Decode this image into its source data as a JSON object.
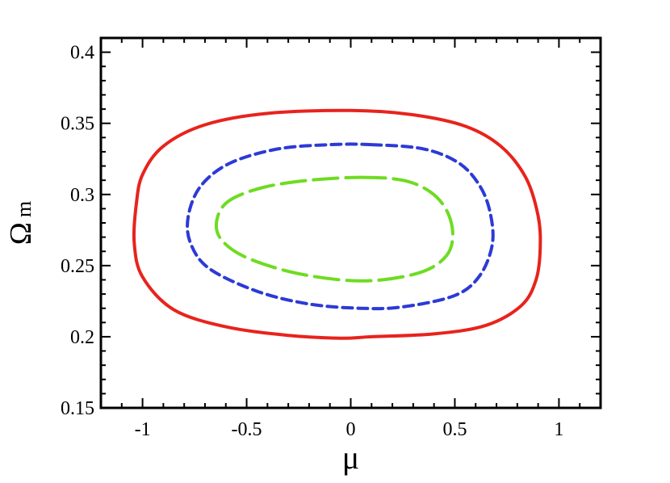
{
  "chart_data": {
    "type": "line",
    "title": "",
    "xlabel": "μ",
    "ylabel": "Ω",
    "ylabel_subscript": "m",
    "xlim": [
      -1.2,
      1.2
    ],
    "ylim": [
      0.15,
      0.41
    ],
    "x_ticks": [
      -1,
      -0.5,
      0,
      0.5,
      1
    ],
    "x_tick_labels": [
      "-1",
      "-0.5",
      "0",
      "0.5",
      "1"
    ],
    "y_ticks": [
      0.15,
      0.2,
      0.25,
      0.3,
      0.35,
      0.4
    ],
    "y_tick_labels": [
      "0.15",
      "0.2",
      "0.25",
      "0.3",
      "0.35",
      "0.4"
    ],
    "grid": false,
    "legend": "none",
    "series": [
      {
        "color": "#e8231c",
        "style": "solid",
        "points": [
          [
            0.0,
            0.359
          ],
          [
            0.3,
            0.356
          ],
          [
            0.55,
            0.348
          ],
          [
            0.72,
            0.334
          ],
          [
            0.84,
            0.312
          ],
          [
            0.9,
            0.285
          ],
          [
            0.91,
            0.262
          ],
          [
            0.89,
            0.24
          ],
          [
            0.82,
            0.222
          ],
          [
            0.65,
            0.208
          ],
          [
            0.4,
            0.202
          ],
          [
            0.1,
            0.2
          ],
          [
            -0.05,
            0.199
          ],
          [
            -0.3,
            0.201
          ],
          [
            -0.6,
            0.207
          ],
          [
            -0.85,
            0.219
          ],
          [
            -1.0,
            0.242
          ],
          [
            -1.04,
            0.266
          ],
          [
            -1.03,
            0.293
          ],
          [
            -1.0,
            0.314
          ],
          [
            -0.9,
            0.334
          ],
          [
            -0.7,
            0.349
          ],
          [
            -0.4,
            0.357
          ]
        ]
      },
      {
        "color": "#2c3ad6",
        "style": "dashed",
        "points": [
          [
            0.1,
            0.335
          ],
          [
            0.35,
            0.332
          ],
          [
            0.52,
            0.322
          ],
          [
            0.62,
            0.306
          ],
          [
            0.67,
            0.287
          ],
          [
            0.68,
            0.265
          ],
          [
            0.62,
            0.243
          ],
          [
            0.5,
            0.229
          ],
          [
            0.25,
            0.221
          ],
          [
            0.05,
            0.22
          ],
          [
            -0.2,
            0.223
          ],
          [
            -0.45,
            0.232
          ],
          [
            -0.68,
            0.248
          ],
          [
            -0.77,
            0.266
          ],
          [
            -0.78,
            0.285
          ],
          [
            -0.72,
            0.306
          ],
          [
            -0.58,
            0.322
          ],
          [
            -0.35,
            0.332
          ],
          [
            -0.1,
            0.335
          ]
        ]
      },
      {
        "color": "#6edc22",
        "style": "long-dashed",
        "points": [
          [
            0.05,
            0.312
          ],
          [
            0.25,
            0.31
          ],
          [
            0.38,
            0.302
          ],
          [
            0.46,
            0.289
          ],
          [
            0.49,
            0.272
          ],
          [
            0.46,
            0.257
          ],
          [
            0.35,
            0.246
          ],
          [
            0.15,
            0.24
          ],
          [
            -0.05,
            0.24
          ],
          [
            -0.3,
            0.246
          ],
          [
            -0.52,
            0.257
          ],
          [
            -0.63,
            0.27
          ],
          [
            -0.64,
            0.284
          ],
          [
            -0.58,
            0.296
          ],
          [
            -0.42,
            0.305
          ],
          [
            -0.2,
            0.31
          ]
        ]
      }
    ]
  }
}
